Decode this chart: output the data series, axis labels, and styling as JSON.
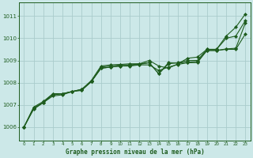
{
  "bg_color": "#cce8e8",
  "grid_color": "#aacccc",
  "line_color": "#1e5c1e",
  "xlabel": "Graphe pression niveau de la mer (hPa)",
  "xlim": [
    -0.5,
    23.5
  ],
  "ylim": [
    1005.4,
    1011.6
  ],
  "yticks": [
    1006,
    1007,
    1008,
    1009,
    1010,
    1011
  ],
  "xticks": [
    0,
    1,
    2,
    3,
    4,
    5,
    6,
    7,
    8,
    9,
    10,
    11,
    12,
    13,
    14,
    15,
    16,
    17,
    18,
    19,
    20,
    21,
    22,
    23
  ],
  "series": [
    [
      1006.0,
      1006.8,
      1007.1,
      1007.5,
      1007.5,
      1007.6,
      1007.65,
      1008.05,
      1008.7,
      1008.75,
      1008.8,
      1008.8,
      1008.85,
      1008.9,
      1008.4,
      1008.85,
      1008.9,
      1009.0,
      1009.0,
      1009.5,
      1009.5,
      1010.1,
      1010.5,
      1011.1
    ],
    [
      1006.0,
      1006.9,
      1007.15,
      1007.5,
      1007.5,
      1007.6,
      1007.7,
      1008.1,
      1008.75,
      1008.8,
      1008.82,
      1008.85,
      1008.85,
      1009.0,
      1008.75,
      1008.65,
      1008.85,
      1009.1,
      1009.15,
      1009.5,
      1009.5,
      1010.0,
      1010.1,
      1010.8
    ],
    [
      1006.0,
      1006.85,
      1007.1,
      1007.4,
      1007.45,
      1007.6,
      1007.68,
      1008.05,
      1008.65,
      1008.7,
      1008.75,
      1008.75,
      1008.8,
      1008.8,
      1008.55,
      1008.7,
      1008.82,
      1008.9,
      1008.9,
      1009.45,
      1009.45,
      1009.5,
      1009.5,
      1010.2
    ],
    [
      1006.0,
      1006.85,
      1007.1,
      1007.45,
      1007.5,
      1007.6,
      1007.7,
      1008.05,
      1008.65,
      1008.7,
      1008.75,
      1008.78,
      1008.82,
      1008.9,
      1008.4,
      1008.9,
      1008.88,
      1008.92,
      1008.95,
      1009.45,
      1009.45,
      1009.52,
      1009.55,
      1010.7
    ]
  ]
}
